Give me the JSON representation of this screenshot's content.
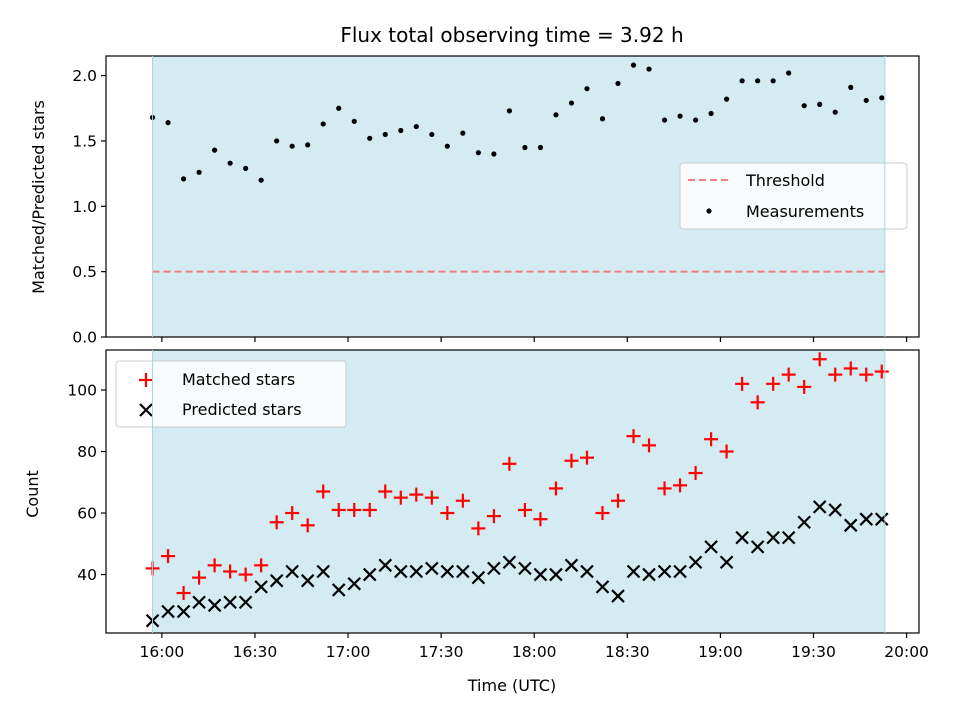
{
  "chart_data": [
    {
      "type": "scatter",
      "title": "Flux total observing time = 3.92 h",
      "ylabel": "Matched/Predicted stars",
      "ylim": [
        0,
        2.15
      ],
      "yticks": [
        "0.0",
        "0.5",
        "1.0",
        "1.5",
        "2.0"
      ],
      "ytick_values": [
        0,
        0.5,
        1.0,
        1.5,
        2.0
      ],
      "legend_position": "center-right",
      "shaded_span": {
        "start": "15:57",
        "end": "19:53",
        "color": "#d4ebf1"
      },
      "threshold": {
        "name": "Threshold",
        "value": 0.5,
        "color": "#f08080",
        "style": "dashed"
      },
      "series": [
        {
          "name": "Measurements",
          "marker": "dot",
          "color": "#000000",
          "x": [
            "15:57",
            "16:02",
            "16:07",
            "16:12",
            "16:17",
            "16:22",
            "16:27",
            "16:32",
            "16:37",
            "16:42",
            "16:47",
            "16:52",
            "16:57",
            "17:02",
            "17:07",
            "17:12",
            "17:17",
            "17:22",
            "17:27",
            "17:32",
            "17:37",
            "17:42",
            "17:47",
            "17:52",
            "17:57",
            "18:02",
            "18:07",
            "18:12",
            "18:17",
            "18:22",
            "18:27",
            "18:32",
            "18:37",
            "18:42",
            "18:47",
            "18:52",
            "18:57",
            "19:02",
            "19:07",
            "19:12",
            "19:17",
            "19:22",
            "19:27",
            "19:32",
            "19:37",
            "19:42",
            "19:47",
            "19:52"
          ],
          "y": [
            1.68,
            1.64,
            1.21,
            1.26,
            1.43,
            1.33,
            1.29,
            1.2,
            1.5,
            1.46,
            1.47,
            1.63,
            1.75,
            1.65,
            1.52,
            1.55,
            1.58,
            1.61,
            1.55,
            1.46,
            1.56,
            1.41,
            1.4,
            1.73,
            1.45,
            1.45,
            1.7,
            1.79,
            1.9,
            1.67,
            1.94,
            2.08,
            2.05,
            1.66,
            1.69,
            1.66,
            1.71,
            1.82,
            1.96,
            1.96,
            1.96,
            2.02,
            1.77,
            1.78,
            1.72,
            1.91,
            1.81,
            1.83
          ]
        }
      ]
    },
    {
      "type": "scatter",
      "xlabel": "Time (UTC)",
      "ylabel": "Count",
      "ylim": [
        21,
        113
      ],
      "yticks": [
        "40",
        "60",
        "80",
        "100"
      ],
      "ytick_values": [
        40,
        60,
        80,
        100
      ],
      "xticks": [
        "16:00",
        "16:30",
        "17:00",
        "17:30",
        "18:00",
        "18:30",
        "19:00",
        "19:30",
        "20:00"
      ],
      "xlim": [
        "15:42",
        "20:04"
      ],
      "legend_position": "top-left",
      "shaded_span": {
        "start": "15:57",
        "end": "19:53",
        "color": "#d4ebf1"
      },
      "series": [
        {
          "name": "Matched stars",
          "marker": "plus",
          "color": "#ff0000",
          "x": [
            "15:57",
            "16:02",
            "16:07",
            "16:12",
            "16:17",
            "16:22",
            "16:27",
            "16:32",
            "16:37",
            "16:42",
            "16:47",
            "16:52",
            "16:57",
            "17:02",
            "17:07",
            "17:12",
            "17:17",
            "17:22",
            "17:27",
            "17:32",
            "17:37",
            "17:42",
            "17:47",
            "17:52",
            "17:57",
            "18:02",
            "18:07",
            "18:12",
            "18:17",
            "18:22",
            "18:27",
            "18:32",
            "18:37",
            "18:42",
            "18:47",
            "18:52",
            "18:57",
            "19:02",
            "19:07",
            "19:12",
            "19:17",
            "19:22",
            "19:27",
            "19:32",
            "19:37",
            "19:42",
            "19:47",
            "19:52"
          ],
          "y": [
            42,
            46,
            34,
            39,
            43,
            41,
            40,
            43,
            57,
            60,
            56,
            67,
            61,
            61,
            61,
            67,
            65,
            66,
            65,
            60,
            64,
            55,
            59,
            76,
            61,
            58,
            68,
            77,
            78,
            60,
            64,
            85,
            82,
            68,
            69,
            73,
            84,
            80,
            102,
            96,
            102,
            105,
            101,
            110,
            105,
            107,
            105,
            106
          ]
        },
        {
          "name": "Predicted stars",
          "marker": "x",
          "color": "#000000",
          "x": [
            "15:57",
            "16:02",
            "16:07",
            "16:12",
            "16:17",
            "16:22",
            "16:27",
            "16:32",
            "16:37",
            "16:42",
            "16:47",
            "16:52",
            "16:57",
            "17:02",
            "17:07",
            "17:12",
            "17:17",
            "17:22",
            "17:27",
            "17:32",
            "17:37",
            "17:42",
            "17:47",
            "17:52",
            "17:57",
            "18:02",
            "18:07",
            "18:12",
            "18:17",
            "18:22",
            "18:27",
            "18:32",
            "18:37",
            "18:42",
            "18:47",
            "18:52",
            "18:57",
            "19:02",
            "19:07",
            "19:12",
            "19:17",
            "19:22",
            "19:27",
            "19:32",
            "19:37",
            "19:42",
            "19:47",
            "19:52"
          ],
          "y": [
            25,
            28,
            28,
            31,
            30,
            31,
            31,
            36,
            38,
            41,
            38,
            41,
            35,
            37,
            40,
            43,
            41,
            41,
            42,
            41,
            41,
            39,
            42,
            44,
            42,
            40,
            40,
            43,
            41,
            36,
            33,
            41,
            40,
            41,
            41,
            44,
            49,
            44,
            52,
            49,
            52,
            52,
            57,
            62,
            61,
            56,
            58,
            58
          ]
        }
      ]
    }
  ]
}
